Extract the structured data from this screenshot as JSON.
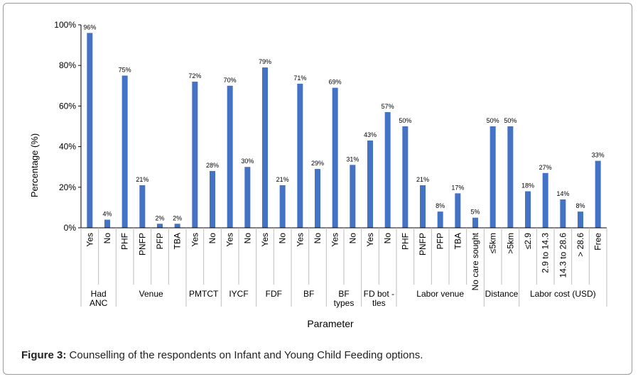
{
  "figure": {
    "label": "Figure 3:",
    "text": "Counselling of the respondents on Infant and Young Child Feeding options."
  },
  "chart_data": {
    "type": "bar",
    "ylabel": "Percentage (%)",
    "xlabel": "Parameter",
    "ylim": [
      0,
      100
    ],
    "yticks": [
      "0%",
      "20%",
      "40%",
      "60%",
      "80%",
      "100%"
    ],
    "bar_color": "#4472c4",
    "grid": false,
    "legend": "none",
    "categories": [
      "Yes",
      "No",
      "PHF",
      "PNFP",
      "PFP",
      "TBA",
      "Yes",
      "No",
      "Yes",
      "No",
      "Yes",
      "No",
      "Yes",
      "No",
      "Yes",
      "No",
      "Yes",
      "No",
      "PHF",
      "PNFP",
      "PFP",
      "TBA",
      "No care sought",
      "≤5km",
      ">5km",
      "≤2.9",
      "2.9 to 14.3",
      "14.3 to 28.6",
      "> 28.6",
      "Free"
    ],
    "values": [
      96,
      4,
      75,
      21,
      2,
      2,
      72,
      28,
      70,
      30,
      79,
      21,
      71,
      29,
      69,
      31,
      43,
      57,
      50,
      21,
      8,
      17,
      5,
      50,
      50,
      18,
      27,
      14,
      8,
      33
    ],
    "value_labels": [
      "96%",
      "4%",
      "75%",
      "21%",
      "2%",
      "2%",
      "72%",
      "28%",
      "70%",
      "30%",
      "79%",
      "21%",
      "71%",
      "29%",
      "69%",
      "31%",
      "43%",
      "57%",
      "50%",
      "21%",
      "8%",
      "17%",
      "5%",
      "50%",
      "50%",
      "18%",
      "27%",
      "14%",
      "8%",
      "33%"
    ],
    "groups": [
      {
        "label": [
          "Had",
          "ANC"
        ],
        "count": 2
      },
      {
        "label": [
          "Venue"
        ],
        "count": 4
      },
      {
        "label": [
          "PMTCT"
        ],
        "count": 2
      },
      {
        "label": [
          "IYCF"
        ],
        "count": 2
      },
      {
        "label": [
          "FDF"
        ],
        "count": 2
      },
      {
        "label": [
          "BF"
        ],
        "count": 2
      },
      {
        "label": [
          "BF",
          "types"
        ],
        "count": 2
      },
      {
        "label": [
          "FD bot -",
          "tles"
        ],
        "count": 2
      },
      {
        "label": [
          "Labor venue"
        ],
        "count": 5
      },
      {
        "label": [
          "Distance"
        ],
        "count": 2
      },
      {
        "label": [
          "Labor cost (USD)"
        ],
        "count": 5
      }
    ]
  }
}
